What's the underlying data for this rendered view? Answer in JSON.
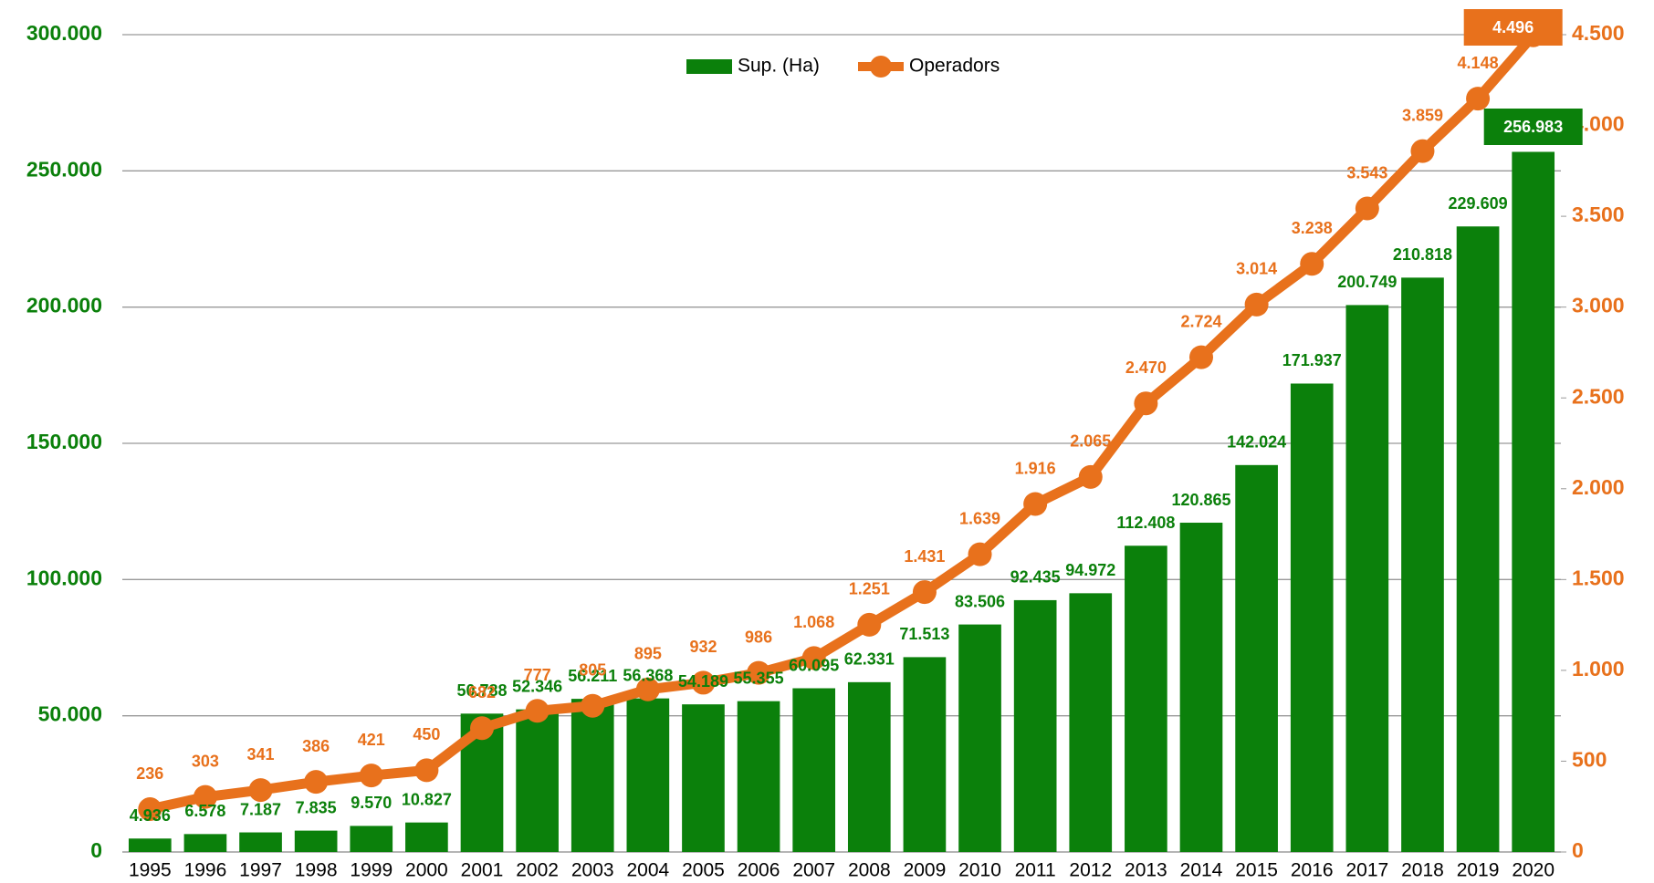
{
  "chart_data": {
    "type": "bar",
    "categories": [
      "1995",
      "1996",
      "1997",
      "1998",
      "1999",
      "2000",
      "2001",
      "2002",
      "2003",
      "2004",
      "2005",
      "2006",
      "2007",
      "2008",
      "2009",
      "2010",
      "2011",
      "2012",
      "2013",
      "2014",
      "2015",
      "2016",
      "2017",
      "2018",
      "2019",
      "2020"
    ],
    "series": [
      {
        "name": "Sup. (Ha)",
        "type": "bar",
        "color": "#0b800b",
        "values": [
          4936,
          6578,
          7187,
          7835,
          9570,
          10827,
          50788,
          52346,
          56211,
          56368,
          54189,
          55355,
          60095,
          62331,
          71513,
          83506,
          92435,
          94972,
          112408,
          120865,
          142024,
          171937,
          200749,
          210818,
          229609,
          256983
        ],
        "value_labels": [
          "4.936",
          "6.578",
          "7.187",
          "7.835",
          "9.570",
          "10.827",
          "50.788",
          "52.346",
          "56.211",
          "56.368",
          "54.189",
          "55.355",
          "60.095",
          "62.331",
          "71.513",
          "83.506",
          "92.435",
          "94.972",
          "112.408",
          "120.865",
          "142.024",
          "171.937",
          "200.749",
          "210.818",
          "229.609",
          "256.983"
        ]
      },
      {
        "name": "Operadors",
        "type": "line",
        "axis": "y2",
        "color": "#e8711c",
        "values": [
          236,
          303,
          341,
          386,
          421,
          450,
          682,
          777,
          805,
          895,
          932,
          986,
          1068,
          1251,
          1431,
          1639,
          1916,
          2065,
          2470,
          2724,
          3014,
          3238,
          3543,
          3859,
          4148,
          4496
        ],
        "value_labels": [
          "236",
          "303",
          "341",
          "386",
          "421",
          "450",
          "682",
          "777",
          "805",
          "895",
          "932",
          "986",
          "1.068",
          "1.251",
          "1.431",
          "1.639",
          "1.916",
          "2.065",
          "2.470",
          "2.724",
          "3.014",
          "3.238",
          "3.543",
          "3.859",
          "4.148",
          "4.496"
        ]
      }
    ],
    "ylim": [
      0,
      300000
    ],
    "yticks": [
      0,
      {
        "value": 50000,
        "label": "50.000"
      },
      {
        "value": 100000,
        "label": "100.000"
      },
      {
        "value": 150000,
        "label": "150.000"
      },
      {
        "value": 200000,
        "label": "200.000"
      },
      {
        "value": 250000,
        "label": "250.000"
      },
      {
        "value": 300000,
        "label": "300.000"
      }
    ],
    "y2lim": [
      0,
      4500
    ],
    "y2ticks": [
      0,
      500,
      {
        "value": 1000,
        "label": "1.000"
      },
      {
        "value": 1500,
        "label": "1.500"
      },
      {
        "value": 2000,
        "label": "2.000"
      },
      {
        "value": 2500,
        "label": "2.500"
      },
      {
        "value": 3000,
        "label": "3.000"
      },
      {
        "value": 3500,
        "label": "3.500"
      },
      {
        "value": 4000,
        "label": "4.000"
      },
      {
        "value": 4500,
        "label": "4.500"
      }
    ],
    "grid": true,
    "legend": "top"
  }
}
